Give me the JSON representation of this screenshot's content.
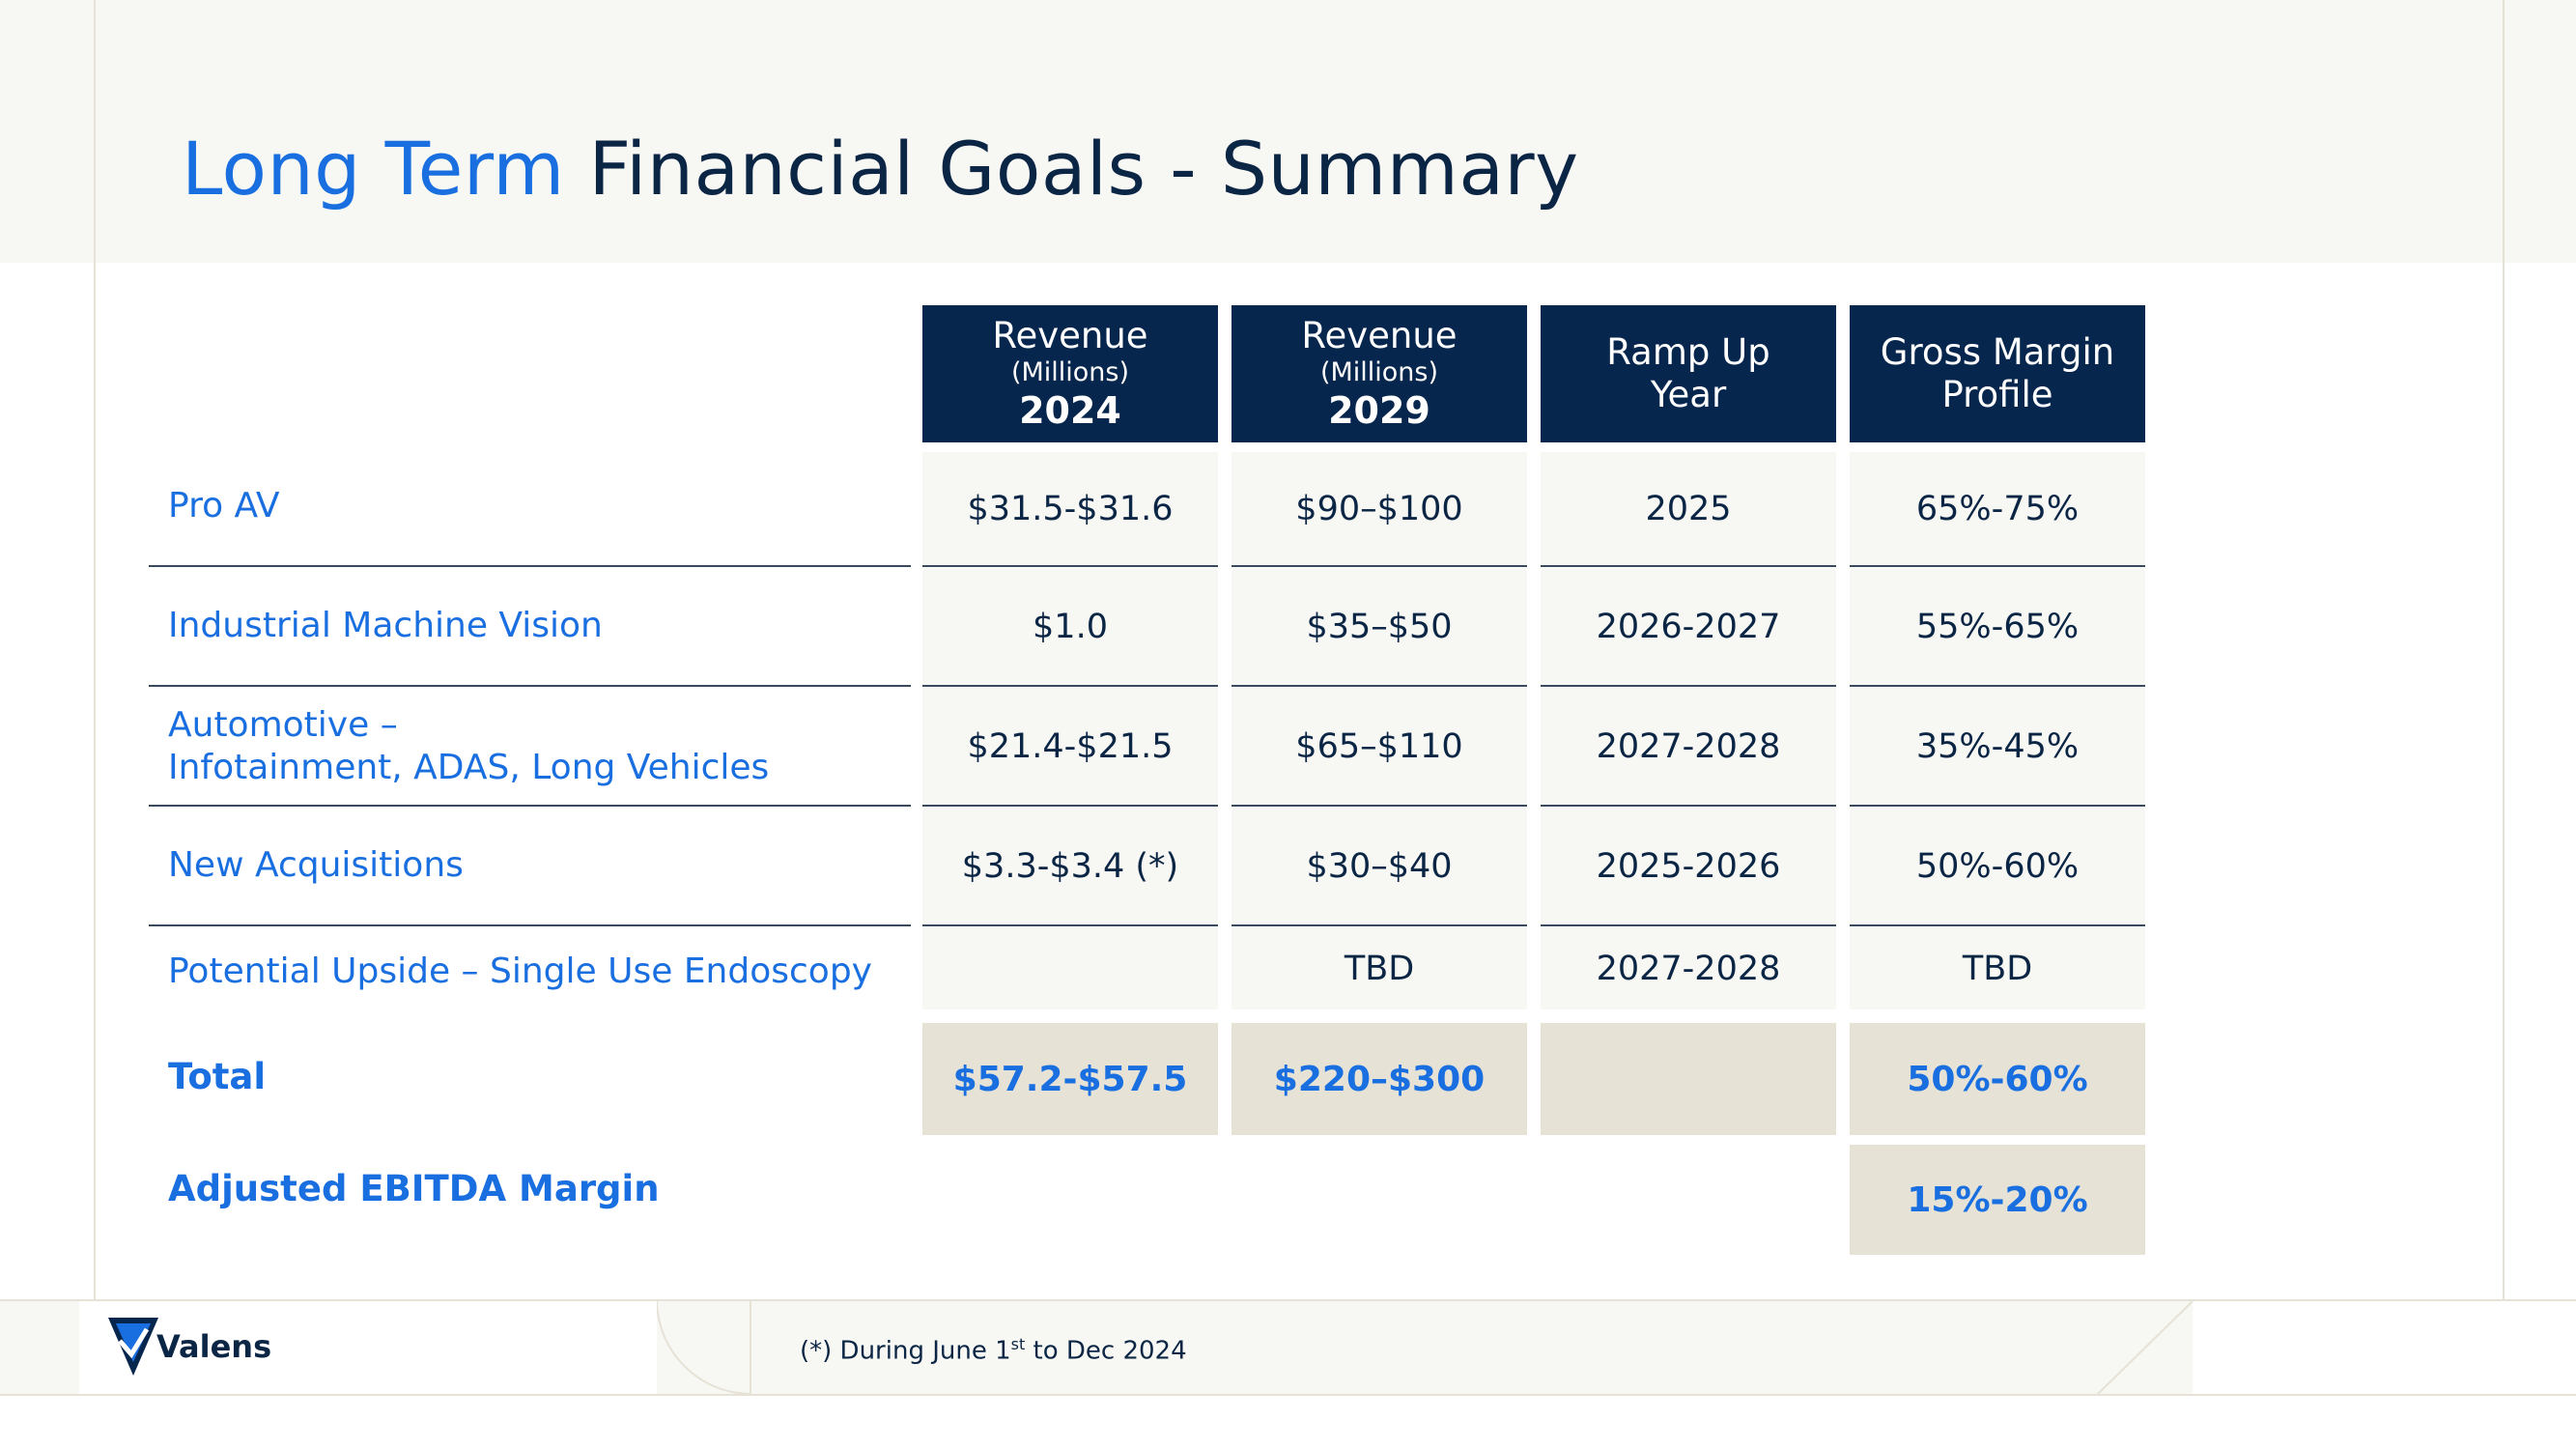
{
  "title": {
    "accent": "Long Term",
    "rest": "Financial Goals - Summary"
  },
  "columns": [
    {
      "line1": "Revenue",
      "line2": "(Millions)",
      "line3": "2024"
    },
    {
      "line1": "Revenue",
      "line2": "(Millions)",
      "line3": "2029"
    },
    {
      "line1": "Ramp Up",
      "line2": "Year"
    },
    {
      "line1": "Gross Margin",
      "line2": "Profile"
    }
  ],
  "rows": [
    {
      "label": "Pro AV",
      "cells": [
        "$31.5-$31.6",
        "$90–$100",
        "2025",
        "65%-75%"
      ]
    },
    {
      "label": "Industrial Machine Vision",
      "cells": [
        "$1.0",
        "$35–$50",
        "2026-2027",
        "55%-65%"
      ]
    },
    {
      "label_line1": "Automotive –",
      "label_line2": "Infotainment, ADAS, Long Vehicles",
      "cells": [
        "$21.4-$21.5",
        "$65–$110",
        "2027-2028",
        "35%-45%"
      ]
    },
    {
      "label": "New Acquisitions",
      "cells": [
        "$3.3-$3.4 (*)",
        "$30–$40",
        "2025-2026",
        "50%-60%"
      ]
    },
    {
      "label": "Potential Upside – Single Use Endoscopy",
      "cells": [
        "",
        "TBD",
        "2027-2028",
        "TBD"
      ]
    }
  ],
  "total": {
    "label": "Total",
    "cells": [
      "$57.2-$57.5",
      "$220–$300",
      "",
      "50%-60%"
    ]
  },
  "ebitda": {
    "label": "Adjusted EBITDA Margin",
    "value": "15%-20%"
  },
  "footer": {
    "logo": "Valens",
    "footnote_pre": "(*) During June 1",
    "footnote_sup": "st",
    "footnote_post": " to Dec 2024"
  },
  "colors": {
    "accent": "#1a6fe0",
    "navy": "#07264d",
    "beige": "#e6e2d6",
    "offwhite": "#f7f7f3"
  }
}
